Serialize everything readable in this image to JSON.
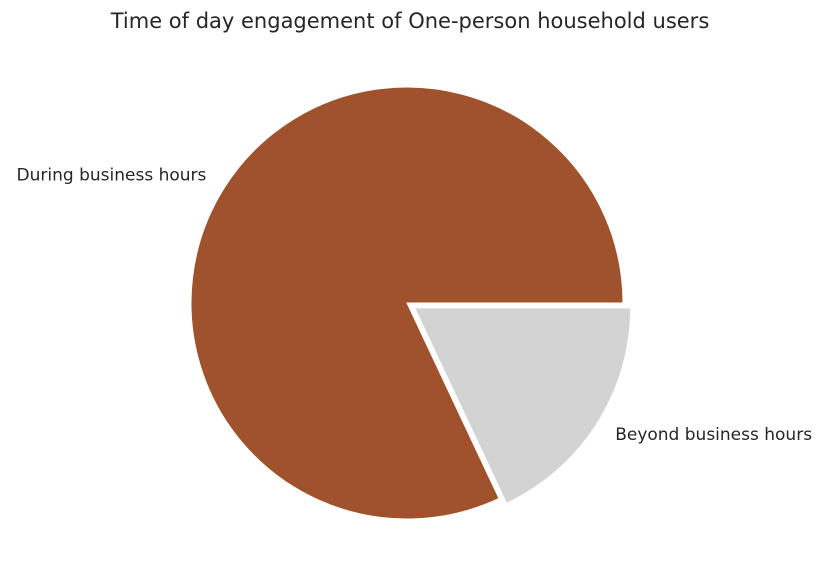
{
  "chart_data": {
    "type": "pie",
    "title": "Time of day engagement of One-person household users",
    "slices": [
      {
        "label": "During business hours",
        "value": 82,
        "color": "#a0522d",
        "exploded": false
      },
      {
        "label": "Beyond business hours",
        "value": 18,
        "color": "#d3d3d3",
        "exploded": true
      }
    ],
    "start_angle_deg": 0,
    "direction": "counterclockwise",
    "legend": "none"
  }
}
